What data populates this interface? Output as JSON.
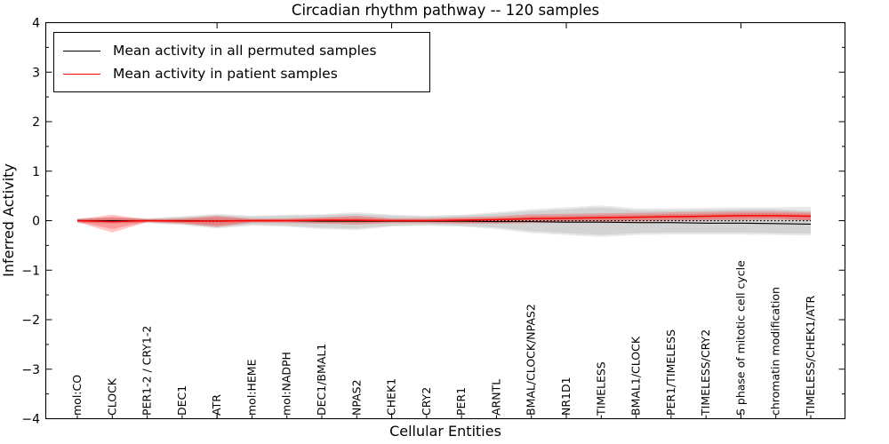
{
  "figure": {
    "title": "Circadian rhythm pathway -- 120 samples",
    "x_axis_label": "Cellular Entities",
    "y_axis_label": "Inferred Activity"
  },
  "legend": {
    "entries": [
      {
        "label": "Mean activity in all permuted samples",
        "color": "#000000"
      },
      {
        "label": "Mean activity in patient samples",
        "color": "#ff0000"
      }
    ]
  },
  "chart_data": {
    "type": "line",
    "title": "Circadian rhythm pathway -- 120 samples",
    "xlabel": "Cellular Entities",
    "ylabel": "Inferred Activity",
    "ylim": [
      -4,
      4
    ],
    "yticks": [
      -4,
      -3,
      -2,
      -1,
      0,
      1,
      2,
      3,
      4
    ],
    "y_minor_step": 0.5,
    "x_major_tick_indices": [
      4,
      9,
      14,
      19
    ],
    "grid": false,
    "legend_position": "upper left",
    "categories": [
      "mol:CO",
      "CLOCK",
      "PER1-2 / CRY1-2",
      "DEC1",
      "ATR",
      "mol:HEME",
      "mol:NADPH",
      "DEC1/BMAL1",
      "NPAS2",
      "CHEK1",
      "CRY2",
      "PER1",
      "ARNTL",
      "BMAL/CLOCK/NPAS2",
      "NR1D1",
      "TIMELESS",
      "BMAL1/CLOCK",
      "PER1/TIMELESS",
      "TIMELESS/CRY2",
      "S phase of mitotic cell cycle",
      "chromatin modification",
      "TIMELESS/CHEK1/ATR"
    ],
    "series": [
      {
        "name": "Mean activity in all permuted samples",
        "color": "#000000",
        "style": "solid",
        "values": [
          0,
          0,
          0,
          0,
          -0.01,
          0,
          0,
          -0.01,
          -0.01,
          -0.01,
          -0.01,
          -0.01,
          -0.02,
          -0.02,
          -0.03,
          -0.03,
          -0.04,
          -0.04,
          -0.05,
          -0.05,
          -0.06,
          -0.07
        ]
      },
      {
        "name": "Mean activity in patient samples",
        "color": "#ff0000",
        "style": "solid",
        "values": [
          0,
          -0.02,
          0,
          -0.01,
          -0.01,
          0,
          0,
          0.01,
          0.01,
          0,
          0,
          0.01,
          0.02,
          0.04,
          0.05,
          0.06,
          0.07,
          0.08,
          0.09,
          0.1,
          0.1,
          0.09
        ]
      }
    ],
    "reference_line": {
      "value": 0,
      "color": "#000000",
      "style": "dotted"
    },
    "bands": [
      {
        "name": "permuted-range-outer",
        "color": "#000000",
        "alpha": 0.09,
        "upper": [
          0.05,
          0.06,
          0.05,
          0.09,
          0.14,
          0.1,
          0.12,
          0.13,
          0.17,
          0.12,
          0.1,
          0.12,
          0.17,
          0.23,
          0.27,
          0.31,
          0.25,
          0.25,
          0.26,
          0.27,
          0.27,
          0.28
        ],
        "lower": [
          -0.05,
          -0.06,
          -0.05,
          -0.09,
          -0.16,
          -0.1,
          -0.12,
          -0.17,
          -0.19,
          -0.12,
          -0.1,
          -0.12,
          -0.17,
          -0.25,
          -0.29,
          -0.33,
          -0.29,
          -0.28,
          -0.28,
          -0.28,
          -0.29,
          -0.3
        ]
      },
      {
        "name": "permuted-range-inner",
        "color": "#000000",
        "alpha": 0.09,
        "upper": [
          0.04,
          0.05,
          0.04,
          0.07,
          0.11,
          0.08,
          0.1,
          0.11,
          0.14,
          0.1,
          0.08,
          0.1,
          0.14,
          0.19,
          0.23,
          0.27,
          0.21,
          0.21,
          0.22,
          0.23,
          0.23,
          0.2
        ],
        "lower": [
          -0.04,
          -0.05,
          -0.04,
          -0.07,
          -0.13,
          -0.08,
          -0.1,
          -0.14,
          -0.16,
          -0.1,
          -0.08,
          -0.1,
          -0.14,
          -0.21,
          -0.25,
          -0.29,
          -0.25,
          -0.24,
          -0.24,
          -0.24,
          -0.25,
          -0.26
        ]
      },
      {
        "name": "patient-range-outer",
        "color": "#ff0000",
        "alpha": 0.22,
        "upper": [
          0.03,
          0.12,
          0.03,
          0.05,
          0.1,
          0.04,
          0.05,
          0.07,
          0.1,
          0.05,
          0.05,
          0.07,
          0.09,
          0.13,
          0.14,
          0.15,
          0.16,
          0.17,
          0.18,
          0.19,
          0.19,
          0.17
        ],
        "lower": [
          -0.03,
          -0.24,
          -0.03,
          -0.06,
          -0.13,
          -0.04,
          -0.05,
          -0.06,
          -0.08,
          -0.05,
          -0.05,
          -0.06,
          -0.06,
          -0.05,
          -0.04,
          -0.03,
          -0.02,
          -0.01,
          0,
          0.01,
          0.02,
          0.01
        ]
      },
      {
        "name": "patient-range-inner",
        "color": "#ff0000",
        "alpha": 0.22,
        "upper": [
          0.02,
          0.08,
          0.02,
          0.03,
          0.07,
          0.03,
          0.03,
          0.05,
          0.07,
          0.03,
          0.03,
          0.05,
          0.06,
          0.09,
          0.1,
          0.11,
          0.12,
          0.13,
          0.14,
          0.15,
          0.15,
          0.14
        ],
        "lower": [
          -0.02,
          -0.17,
          -0.02,
          -0.04,
          -0.09,
          -0.03,
          -0.03,
          -0.04,
          -0.05,
          -0.03,
          -0.03,
          -0.04,
          -0.04,
          -0.02,
          -0.01,
          0,
          0.01,
          0.02,
          0.03,
          0.04,
          0.05,
          0
        ]
      }
    ]
  }
}
